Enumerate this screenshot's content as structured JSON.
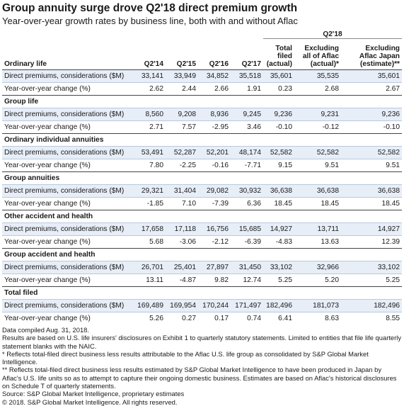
{
  "title": "Group annuity surge drove Q2'18 direct premium growth",
  "subtitle": "Year-over-year growth rates by business line, both with and without Aflac",
  "group_header": "Q2'18",
  "columns": {
    "label": "Ordinary life",
    "q214": "Q2'14",
    "q215": "Q2'15",
    "q216": "Q2'16",
    "q217": "Q2'17",
    "total_l1": "Total",
    "total_l2": "filed",
    "total_l3": "(actual)",
    "ex1_l1": "Excluding",
    "ex1_l2": "all of Aflac",
    "ex1_l3": "(actual)*",
    "ex2_l1": "Excluding",
    "ex2_l2": "Aflac Japan",
    "ex2_l3": "(estimate)**"
  },
  "sections": [
    {
      "name": "Ordinary life",
      "premium_label": "Direct premiums, considerations ($M)",
      "premiums": [
        "33,141",
        "33,949",
        "34,852",
        "35,518",
        "35,601",
        "35,535",
        "35,601"
      ],
      "change_label": "Year-over-year change (%)",
      "changes": [
        "2.62",
        "2.44",
        "2.66",
        "1.91",
        "0.23",
        "2.68",
        "2.67"
      ]
    },
    {
      "name": "Group life",
      "premium_label": "Direct premiums, considerations ($M)",
      "premiums": [
        "8,560",
        "9,208",
        "8,936",
        "9,245",
        "9,236",
        "9,231",
        "9,236"
      ],
      "change_label": "Year-over-year change (%)",
      "changes": [
        "2.71",
        "7.57",
        "-2.95",
        "3.46",
        "-0.10",
        "-0.12",
        "-0.10"
      ]
    },
    {
      "name": "Ordinary individual annuities",
      "premium_label": "Direct premiums, considerations ($M)",
      "premiums": [
        "53,491",
        "52,287",
        "52,201",
        "48,174",
        "52,582",
        "52,582",
        "52,582"
      ],
      "change_label": "Year-over-year change (%)",
      "changes": [
        "7.80",
        "-2.25",
        "-0.16",
        "-7.71",
        "9.15",
        "9.51",
        "9.51"
      ]
    },
    {
      "name": "Group annuities",
      "premium_label": "Direct premiums, considerations ($M)",
      "premiums": [
        "29,321",
        "31,404",
        "29,082",
        "30,932",
        "36,638",
        "36,638",
        "36,638"
      ],
      "change_label": "Year-over-year change (%)",
      "changes": [
        "-1.85",
        "7.10",
        "-7.39",
        "6.36",
        "18.45",
        "18.45",
        "18.45"
      ]
    },
    {
      "name": "Other accident and health",
      "premium_label": "Direct premiums, considerations ($M)",
      "premiums": [
        "17,658",
        "17,118",
        "16,756",
        "15,685",
        "14,927",
        "13,711",
        "14,927"
      ],
      "change_label": "Year-over-year change (%)",
      "changes": [
        "5.68",
        "-3.06",
        "-2.12",
        "-6.39",
        "-4.83",
        "13.63",
        "12.39"
      ]
    },
    {
      "name": "Group accident and health",
      "premium_label": "Direct premiums, considerations ($M)",
      "premiums": [
        "26,701",
        "25,401",
        "27,897",
        "31,450",
        "33,102",
        "32,966",
        "33,102"
      ],
      "change_label": "Year-over-year change (%)",
      "changes": [
        "13.11",
        "-4.87",
        "9.82",
        "12.74",
        "5.25",
        "5.20",
        "5.25"
      ]
    },
    {
      "name": "Total filed",
      "premium_label": "Direct premiums, considerations ($M)",
      "premiums": [
        "169,489",
        "169,954",
        "170,244",
        "171,497",
        "182,496",
        "181,073",
        "182,496"
      ],
      "change_label": "Year-over-year change (%)",
      "changes": [
        "5.26",
        "0.27",
        "0.17",
        "0.74",
        "6.41",
        "8.63",
        "8.55"
      ]
    }
  ],
  "notes": [
    "Data compiled Aug. 31, 2018.",
    "Results are based on U.S. life insurers' disclosures on Exhibit 1 to quarterly statutory statements. Limited to entities that file life quarterly statement blanks with the NAIC.",
    "* Reflects total-filed direct business less results attributable to the Aflac U.S. life group as consolidated by S&P Global Market Intelligence.",
    "** Reflects total-filed direct business less results estimated by S&P Global Market Intelligence to have been produced in Japan by Aflac's U.S. life units so as to attempt to capture their ongoing domestic business. Estimates are based on Aflac's historical disclosures on Schedule T of quarterly statements.",
    "Source: S&P Global Market Intelligence, proprietary estimates",
    "© 2018. S&P Global Market Intelligence. All rights reserved."
  ]
}
